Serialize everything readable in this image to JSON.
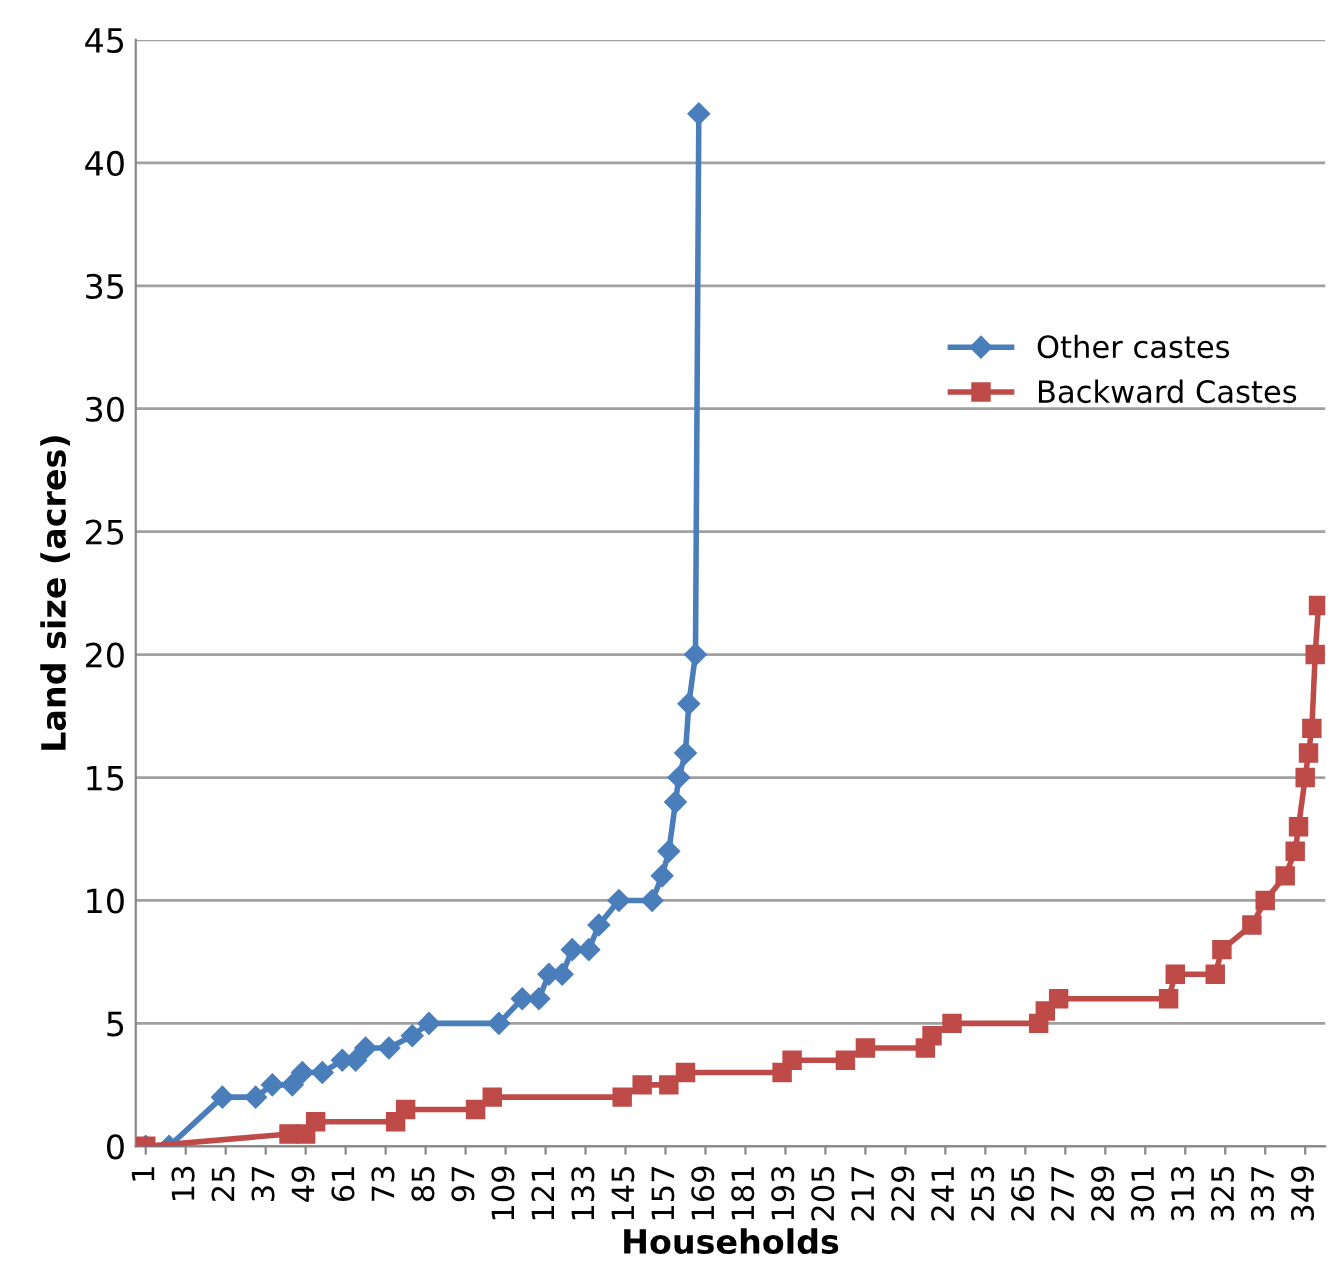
{
  "chart_data": {
    "type": "line",
    "xlabel": "Households",
    "ylabel": "Land size (acres)",
    "xlim": [
      -2,
      355
    ],
    "xticks": [
      1,
      13,
      25,
      37,
      49,
      61,
      73,
      85,
      97,
      109,
      121,
      133,
      145,
      157,
      169,
      181,
      193,
      205,
      217,
      229,
      241,
      253,
      265,
      277,
      289,
      301,
      313,
      325,
      337,
      349
    ],
    "ylim": [
      0,
      45
    ],
    "yticks": [
      0,
      5,
      10,
      15,
      20,
      25,
      30,
      35,
      40,
      45
    ],
    "grid": "y",
    "legend": "right",
    "series": [
      {
        "name": "Other castes",
        "color": "#4a7ebb",
        "marker": "diamond",
        "x": [
          1,
          8,
          24,
          34,
          39,
          45,
          48,
          54,
          60,
          64,
          67,
          74,
          81,
          86,
          107,
          114,
          119,
          122,
          126,
          129,
          134,
          137,
          143,
          153,
          156,
          158,
          160,
          161,
          163,
          164,
          166,
          167
        ],
        "values": [
          0,
          0,
          2,
          2,
          2.5,
          2.5,
          3,
          3,
          3.5,
          3.5,
          4,
          4,
          4.5,
          5,
          5,
          6,
          6,
          7,
          7,
          8,
          8,
          9,
          10,
          10,
          11,
          12,
          14,
          15,
          16,
          18,
          20,
          42
        ]
      },
      {
        "name": "Backward Castes",
        "color": "#be4b48",
        "marker": "square",
        "x": [
          1,
          44,
          49,
          52,
          76,
          79,
          100,
          105,
          144,
          150,
          158,
          163,
          192,
          195,
          211,
          217,
          235,
          237,
          243,
          269,
          271,
          275,
          308,
          310,
          322,
          324,
          333,
          337,
          343,
          346,
          347,
          349,
          350,
          351,
          352,
          353
        ],
        "values": [
          0,
          0.5,
          0.5,
          1,
          1,
          1.5,
          1.5,
          2,
          2,
          2.5,
          2.5,
          3,
          3,
          3.5,
          3.5,
          4,
          4,
          4.5,
          5,
          5,
          5.5,
          6,
          6,
          7,
          7,
          8,
          9,
          10,
          11,
          12,
          13,
          15,
          16,
          17,
          20,
          22
        ]
      }
    ]
  }
}
